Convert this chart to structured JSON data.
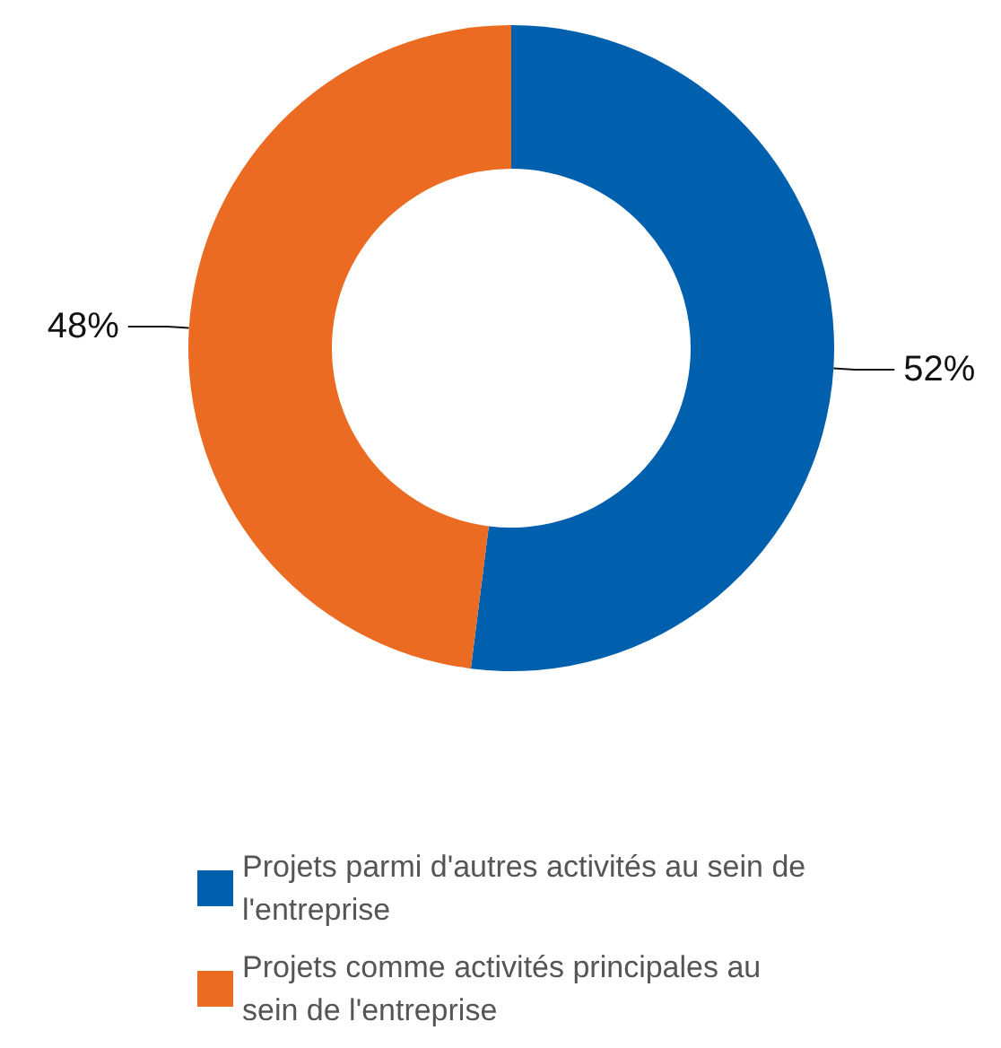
{
  "chart_data": {
    "type": "donut",
    "categories": [
      "Projets parmi d'autres activités au sein de l'entreprise",
      "Projets comme activités principales au sein de l'entreprise"
    ],
    "values": [
      52,
      48
    ],
    "colors": [
      "#0060ae",
      "#ec6b22"
    ],
    "value_labels": [
      "52%",
      "48%"
    ],
    "legend": "bottom"
  }
}
